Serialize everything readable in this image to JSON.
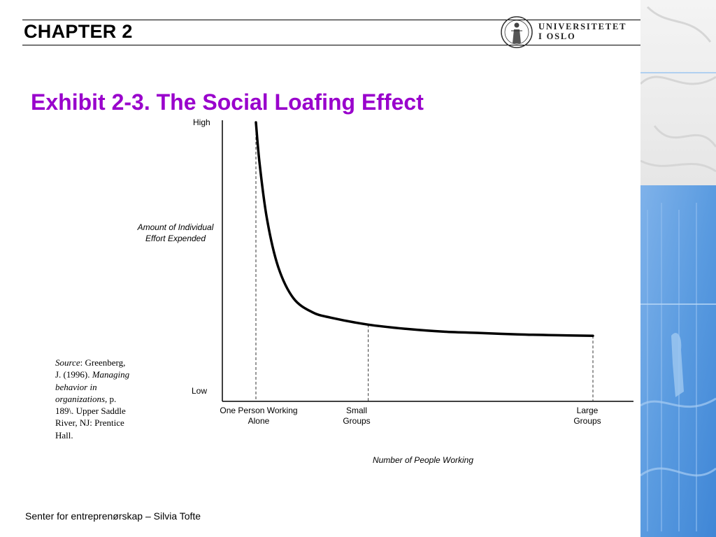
{
  "header": {
    "chapter": "CHAPTER 2",
    "logo_line1": "UNIVERSITETET",
    "logo_line2": "I OSLO",
    "logo_icon": "university-seal-icon"
  },
  "colors": {
    "title": "#9900cc",
    "side_panel": "#5a9be0",
    "rule": "#000000"
  },
  "chart_data": {
    "type": "line",
    "title": "Exhibit 2-3. The Social Loafing Effect",
    "xlabel": "Number of People Working",
    "ylabel": "Amount of Individual Effort Expended",
    "y_ticks": [
      "High",
      "Low"
    ],
    "x_ticks": [
      "One Person Working Alone",
      "Small Groups",
      "Large Groups"
    ],
    "x": [
      1,
      1.1,
      1.3,
      1.6,
      2,
      2.5,
      3,
      4,
      5,
      6,
      7,
      8,
      9,
      10
    ],
    "y": [
      10,
      8.5,
      6.5,
      4.8,
      3.7,
      3.2,
      3.0,
      2.75,
      2.6,
      2.5,
      2.45,
      2.4,
      2.37,
      2.35
    ],
    "xlim": [
      0,
      11
    ],
    "ylim": [
      0,
      10
    ],
    "reference_lines_x": [
      1,
      4,
      10
    ],
    "grid": false
  },
  "source": {
    "label": "Source",
    "text1": ": Greenberg, J. (1996). ",
    "book": "Managing behavior in organizations,",
    "text2": " p. 189\\. Upper Saddle River, NJ: Prentice Hall."
  },
  "footer": "Senter for entreprenørskap – Silvia Tofte"
}
